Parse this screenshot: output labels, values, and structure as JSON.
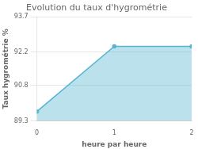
{
  "chart_data": {
    "type": "area",
    "title": "Evolution du taux d'hygrométrie",
    "xlabel": "heure par heure",
    "ylabel": "Taux hygrométrie %",
    "x": [
      0,
      1,
      2
    ],
    "values": [
      89.7,
      92.45,
      92.45
    ],
    "color": "#56b4d3",
    "xlim": [
      0,
      2
    ],
    "ylim": [
      89.3,
      93.7
    ],
    "xticks": [
      0,
      1,
      2
    ],
    "yticks": [
      89.3,
      90.8,
      92.2,
      93.7
    ],
    "grid": "y"
  }
}
